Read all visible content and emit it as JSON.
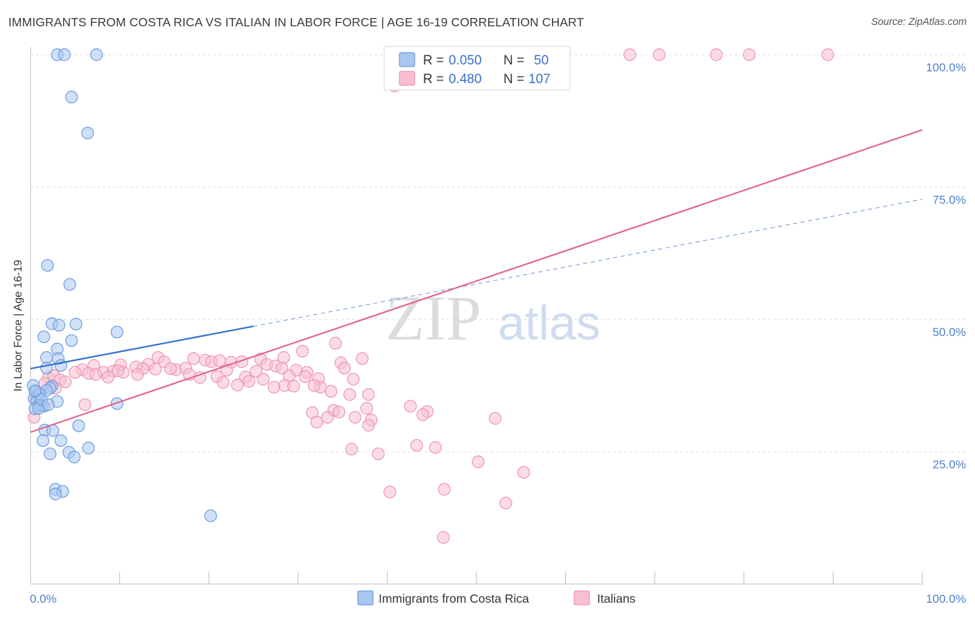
{
  "header": {
    "title": "IMMIGRANTS FROM COSTA RICA VS ITALIAN IN LABOR FORCE | AGE 16-19 CORRELATION CHART",
    "source": "Source: ZipAtlas.com"
  },
  "watermark": {
    "zip": "ZIP",
    "atlas": "atlas"
  },
  "colors": {
    "blue_fill": "#a9c6ee",
    "blue_stroke": "#6b9be0",
    "blue_line": "#2f6fd0",
    "pink_fill": "#f7bfd0",
    "pink_stroke": "#ee94b2",
    "pink_line": "#e0668f",
    "grid": "#dddddd",
    "tick_text": "#4f7fd0"
  },
  "legend": {
    "rows": [
      {
        "r_label": "R =",
        "r_value": "0.050",
        "n_label": "N =",
        "n_value": "50"
      },
      {
        "r_label": "R =",
        "r_value": "0.480",
        "n_label": "N =",
        "n_value": "107"
      }
    ]
  },
  "chart_data": {
    "type": "scatter",
    "title": "IMMIGRANTS FROM COSTA RICA VS ITALIAN IN LABOR FORCE | AGE 16-19 CORRELATION CHART",
    "xlabel": "",
    "ylabel": "In Labor Force | Age 16-19",
    "xlim": [
      0,
      100
    ],
    "ylim": [
      0,
      100
    ],
    "x_tick_labels": [
      "0.0%",
      "100.0%"
    ],
    "y_tick_labels": [
      "100.0%",
      "75.0%",
      "50.0%",
      "25.0%"
    ],
    "y_ticks": [
      100,
      75,
      50,
      25
    ],
    "grid": "horizontal dashed",
    "legend_position": "bottom",
    "series": [
      {
        "name": "Immigrants from Costa Rica",
        "color": "#a9c6ee",
        "r": 0.05,
        "n": 50,
        "trend": {
          "x0": 0,
          "y0": 40.7,
          "x1": 25,
          "y1": 48.7,
          "dashed_to_x": 100,
          "dashed_to_y": 72.7
        },
        "points": [
          [
            3.0,
            100
          ],
          [
            3.8,
            100
          ],
          [
            7.4,
            100
          ],
          [
            4.6,
            92.0
          ],
          [
            6.4,
            85.2
          ],
          [
            1.9,
            60.2
          ],
          [
            4.4,
            56.6
          ],
          [
            2.4,
            49.2
          ],
          [
            3.2,
            48.9
          ],
          [
            5.1,
            49.1
          ],
          [
            9.7,
            47.6
          ],
          [
            1.5,
            46.7
          ],
          [
            4.6,
            46.0
          ],
          [
            3.0,
            44.4
          ],
          [
            1.8,
            42.8
          ],
          [
            3.1,
            42.6
          ],
          [
            1.8,
            40.8
          ],
          [
            3.4,
            41.3
          ],
          [
            0.3,
            37.5
          ],
          [
            2.4,
            37.4
          ],
          [
            2.2,
            37.0
          ],
          [
            1.8,
            36.6
          ],
          [
            0.6,
            36.3
          ],
          [
            0.8,
            35.6
          ],
          [
            0.4,
            35.1
          ],
          [
            0.7,
            34.6
          ],
          [
            3.0,
            34.5
          ],
          [
            9.7,
            34.1
          ],
          [
            0.9,
            33.8
          ],
          [
            1.3,
            33.7
          ],
          [
            1.5,
            33.6
          ],
          [
            0.5,
            33.1
          ],
          [
            0.9,
            33.2
          ],
          [
            5.4,
            29.9
          ],
          [
            1.6,
            29.1
          ],
          [
            2.5,
            29.0
          ],
          [
            1.4,
            27.1
          ],
          [
            3.4,
            27.1
          ],
          [
            6.5,
            25.7
          ],
          [
            2.2,
            24.6
          ],
          [
            4.3,
            24.9
          ],
          [
            4.9,
            24.0
          ],
          [
            2.8,
            17.9
          ],
          [
            3.6,
            17.5
          ],
          [
            2.8,
            17.0
          ],
          [
            20.2,
            12.9
          ],
          [
            1.0,
            35.9
          ],
          [
            1.2,
            34.9
          ],
          [
            2.0,
            33.9
          ],
          [
            0.5,
            36.5
          ]
        ]
      },
      {
        "name": "Italians",
        "color": "#f7bfd0",
        "r": 0.48,
        "n": 107,
        "trend": {
          "x0": 0,
          "y0": 28.7,
          "x1": 100,
          "y1": 85.8
        },
        "points": [
          [
            43.9,
            100
          ],
          [
            53.0,
            100
          ],
          [
            54.5,
            100
          ],
          [
            55.0,
            100
          ],
          [
            55.5,
            100
          ],
          [
            56.2,
            100
          ],
          [
            57.0,
            100
          ],
          [
            58.2,
            100
          ],
          [
            67.2,
            100
          ],
          [
            70.5,
            100
          ],
          [
            76.9,
            100
          ],
          [
            80.6,
            100
          ],
          [
            89.4,
            100
          ],
          [
            41.2,
            100
          ],
          [
            41.8,
            100
          ],
          [
            40.8,
            94.1
          ],
          [
            34.2,
            45.5
          ],
          [
            30.5,
            44.0
          ],
          [
            14.3,
            42.8
          ],
          [
            15.0,
            42.0
          ],
          [
            18.3,
            42.6
          ],
          [
            28.4,
            42.8
          ],
          [
            25.8,
            42.5
          ],
          [
            19.6,
            42.3
          ],
          [
            20.3,
            42.0
          ],
          [
            21.2,
            42.2
          ],
          [
            22.5,
            41.9
          ],
          [
            23.7,
            42.0
          ],
          [
            26.5,
            41.5
          ],
          [
            27.5,
            41.2
          ],
          [
            34.8,
            41.8
          ],
          [
            37.2,
            42.6
          ],
          [
            13.2,
            41.5
          ],
          [
            10.1,
            41.4
          ],
          [
            11.8,
            41.0
          ],
          [
            12.6,
            40.7
          ],
          [
            7.1,
            41.3
          ],
          [
            5.8,
            40.5
          ],
          [
            8.2,
            40.0
          ],
          [
            9.3,
            40.2
          ],
          [
            10.4,
            40.0
          ],
          [
            14.0,
            40.6
          ],
          [
            16.3,
            40.5
          ],
          [
            17.4,
            40.8
          ],
          [
            25.3,
            40.2
          ],
          [
            28.2,
            40.8
          ],
          [
            29.8,
            40.4
          ],
          [
            31.0,
            40.0
          ],
          [
            35.2,
            40.8
          ],
          [
            5.0,
            40.0
          ],
          [
            6.5,
            39.8
          ],
          [
            7.3,
            39.6
          ],
          [
            9.8,
            40.3
          ],
          [
            2.0,
            39.0
          ],
          [
            2.6,
            39.4
          ],
          [
            3.3,
            38.6
          ],
          [
            19.0,
            39.0
          ],
          [
            17.8,
            39.6
          ],
          [
            20.9,
            39.2
          ],
          [
            24.1,
            39.1
          ],
          [
            26.1,
            38.7
          ],
          [
            29.0,
            39.3
          ],
          [
            32.3,
            38.8
          ],
          [
            36.2,
            38.7
          ],
          [
            15.7,
            40.7
          ],
          [
            21.6,
            38.1
          ],
          [
            23.2,
            37.6
          ],
          [
            27.3,
            37.2
          ],
          [
            28.5,
            37.5
          ],
          [
            32.5,
            37.2
          ],
          [
            31.8,
            37.5
          ],
          [
            33.7,
            36.4
          ],
          [
            35.8,
            35.8
          ],
          [
            37.9,
            35.8
          ],
          [
            0.4,
            31.5
          ],
          [
            6.1,
            33.9
          ],
          [
            31.6,
            32.4
          ],
          [
            34.0,
            32.8
          ],
          [
            37.7,
            33.2
          ],
          [
            42.6,
            33.6
          ],
          [
            44.5,
            32.6
          ],
          [
            44.0,
            32.0
          ],
          [
            32.1,
            30.6
          ],
          [
            33.3,
            31.5
          ],
          [
            36.4,
            31.5
          ],
          [
            38.2,
            31.0
          ],
          [
            37.9,
            30.0
          ],
          [
            52.1,
            31.3
          ],
          [
            34.6,
            32.5
          ],
          [
            36.0,
            25.5
          ],
          [
            39.0,
            24.6
          ],
          [
            43.3,
            26.2
          ],
          [
            45.4,
            25.8
          ],
          [
            50.2,
            23.1
          ],
          [
            55.3,
            21.1
          ],
          [
            40.3,
            17.4
          ],
          [
            46.4,
            17.9
          ],
          [
            53.3,
            15.3
          ],
          [
            46.3,
            8.8
          ],
          [
            29.5,
            37.4
          ],
          [
            30.8,
            39.2
          ],
          [
            24.5,
            38.3
          ],
          [
            12.0,
            39.6
          ],
          [
            2.8,
            37.0
          ],
          [
            1.6,
            37.9
          ],
          [
            3.9,
            38.2
          ],
          [
            8.7,
            39.1
          ],
          [
            22.0,
            40.4
          ]
        ]
      }
    ]
  }
}
